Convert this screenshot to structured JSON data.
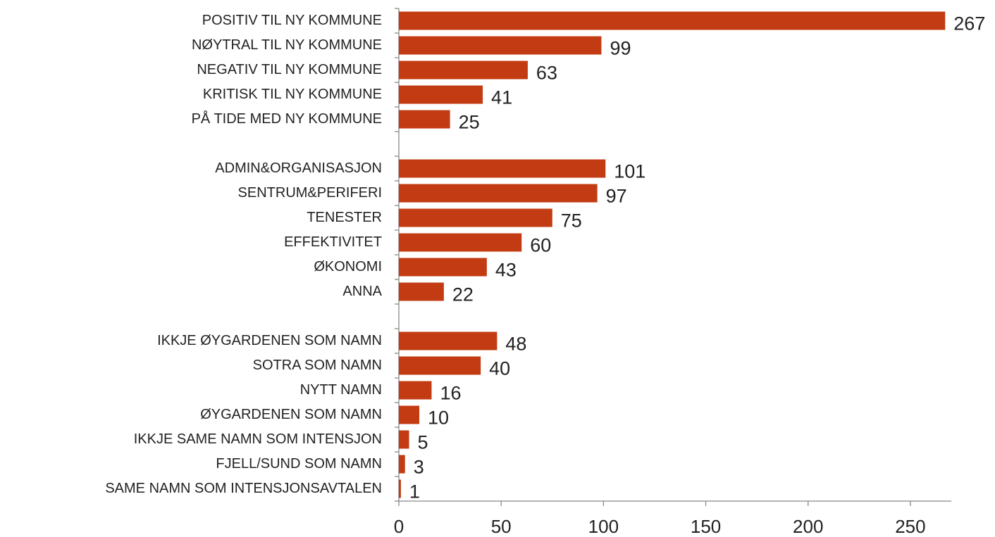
{
  "chart_data": {
    "type": "barh",
    "categories": [
      "POSITIV TIL NY KOMMUNE",
      "NØYTRAL TIL NY KOMMUNE",
      "NEGATIV TIL NY KOMMUNE",
      "KRITISK TIL NY KOMMUNE",
      "PÅ TIDE MED NY KOMMUNE",
      null,
      "ADMIN&ORGANISASJON",
      "SENTRUM&PERIFERI",
      "TENESTER",
      "EFFEKTIVITET",
      "ØKONOMI",
      "ANNA",
      null,
      "IKKJE ØYGARDENEN SOM NAMN",
      "SOTRA SOM NAMN",
      "NYTT NAMN",
      "ØYGARDENEN SOM NAMN",
      "IKKJE SAME NAMN SOM INTENSJON",
      "FJELL/SUND SOM NAMN",
      "SAME NAMN SOM INTENSJONSAVTALEN"
    ],
    "values": [
      267,
      99,
      63,
      41,
      25,
      null,
      101,
      97,
      75,
      60,
      43,
      22,
      null,
      48,
      40,
      16,
      10,
      5,
      3,
      1
    ],
    "color": "#c23b12",
    "xlim": [
      0,
      270
    ],
    "xticks": [
      0,
      50,
      100,
      150,
      200,
      250
    ]
  }
}
